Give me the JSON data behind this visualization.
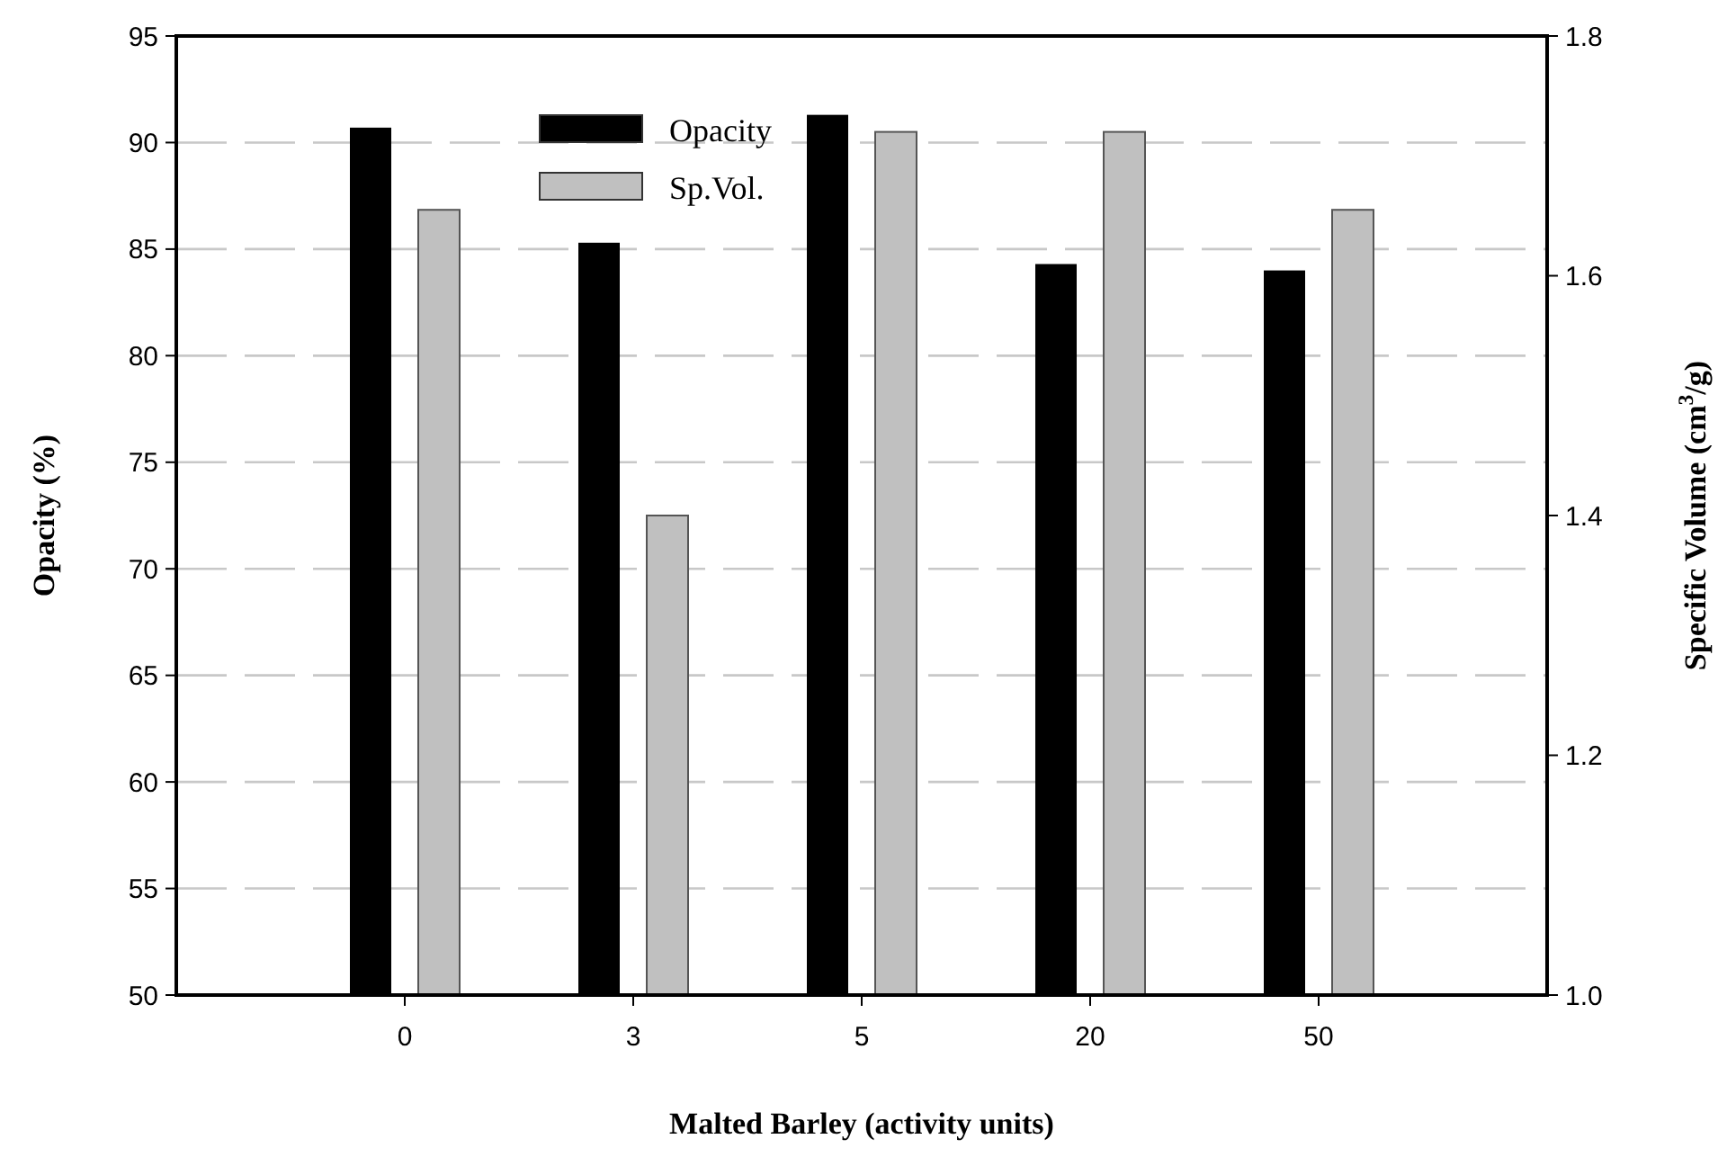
{
  "chart_data": {
    "type": "bar",
    "xlabel": "Malted Barley (activity units)",
    "ylabel": "Opacity (%)",
    "y2label": "Specific Volume (cm$^{3}$/g)",
    "categories": [
      "0",
      "3",
      "5",
      "20",
      "50"
    ],
    "series": [
      {
        "name": "Opacity",
        "color": "#000000",
        "values": [
          90.7,
          85.3,
          91.3,
          84.3,
          84.0
        ]
      },
      {
        "name": "Sp.Vol.",
        "color": "#c0c0c0",
        "axis": "y2",
        "values": [
          1.655,
          1.4,
          1.72,
          1.72,
          1.655
        ]
      }
    ],
    "ylim": [
      50,
      95
    ],
    "yticks": [
      50,
      55,
      60,
      65,
      70,
      75,
      80,
      85,
      90,
      95
    ],
    "y2lim": [
      1.0,
      1.8
    ],
    "y2ticks": [
      {
        "value": 1.0,
        "label": "1.0"
      },
      1.2,
      1.4,
      1.6,
      1.8
    ],
    "grid": "y",
    "legend": "top"
  }
}
